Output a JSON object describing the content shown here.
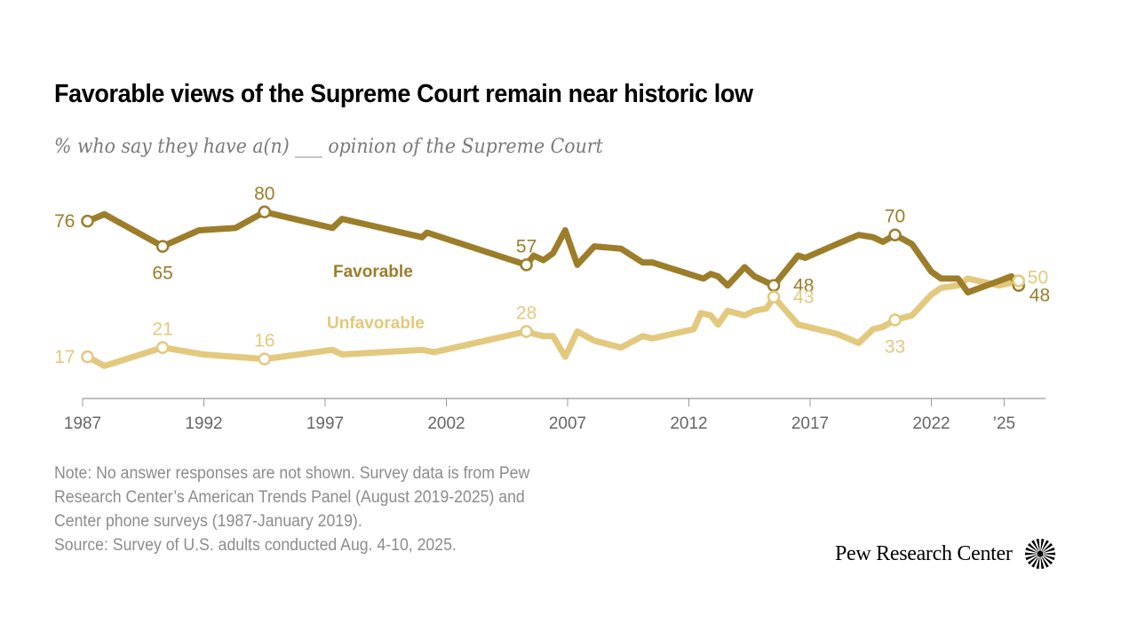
{
  "title": "Favorable views of the Supreme Court remain near historic low",
  "subtitle": "% who say they have a(n) ___ opinion of the Supreme Court",
  "note_lines": [
    "Note: No answer responses are not shown. Survey data is from Pew",
    "Research Center’s American Trends Panel (August 2019-2025) and",
    "Center phone surveys (1987-January 2019).",
    "Source: Survey of U.S. adults conducted Aug. 4-10, 2025."
  ],
  "logo_text": "Pew Research Center",
  "logo_icon": "pew-sunburst-icon",
  "colors": {
    "favorable": "#9c7d2a",
    "unfavorable": "#e3c97e",
    "axis": "#999999",
    "tick_label": "#666666"
  },
  "chart_data": {
    "type": "line",
    "title": "Favorable views of the Supreme Court remain near historic low",
    "xlabel": "",
    "ylabel": "%",
    "xlim": [
      1987,
      2026.9
    ],
    "ylim": [
      0,
      90
    ],
    "grid": false,
    "x_ticks": [
      1987,
      1992,
      1997,
      2002,
      2007,
      2012,
      2017,
      2022,
      2025
    ],
    "x_tick_labels": [
      "1987",
      "1992",
      "1997",
      "2002",
      "2007",
      "2012",
      "2017",
      "2022",
      "’25"
    ],
    "series": [
      {
        "name": "Favorable",
        "color": "#9c7d2a",
        "legend_label_position": "inline-below-line",
        "points": [
          [
            1987.2,
            76
          ],
          [
            1987.9,
            79
          ],
          [
            1990.3,
            65
          ],
          [
            1991.8,
            72
          ],
          [
            1993.3,
            73
          ],
          [
            1994.5,
            80
          ],
          [
            1997.3,
            73
          ],
          [
            1997.7,
            77
          ],
          [
            2001.0,
            69
          ],
          [
            2001.2,
            71
          ],
          [
            2005.3,
            57
          ],
          [
            2005.6,
            61
          ],
          [
            2006.0,
            59
          ],
          [
            2006.4,
            62
          ],
          [
            2006.9,
            72
          ],
          [
            2007.4,
            57
          ],
          [
            2008.1,
            65
          ],
          [
            2009.2,
            64
          ],
          [
            2010.1,
            58
          ],
          [
            2010.5,
            58
          ],
          [
            2012.6,
            51
          ],
          [
            2012.9,
            53
          ],
          [
            2013.2,
            52
          ],
          [
            2013.6,
            48
          ],
          [
            2014.3,
            56
          ],
          [
            2014.7,
            52
          ],
          [
            2015.5,
            48
          ],
          [
            2016.5,
            61
          ],
          [
            2016.8,
            60
          ],
          [
            2018.1,
            66
          ],
          [
            2019.0,
            70
          ],
          [
            2019.6,
            69
          ],
          [
            2020.0,
            67
          ],
          [
            2020.5,
            70
          ],
          [
            2021.2,
            66
          ],
          [
            2022.0,
            54
          ],
          [
            2022.4,
            51
          ],
          [
            2023.1,
            51
          ],
          [
            2023.5,
            45
          ],
          [
            2024.8,
            50
          ],
          [
            2025.3,
            52
          ],
          [
            2025.6,
            48
          ]
        ],
        "labeled_points": [
          {
            "x": 1987.2,
            "y": 76,
            "label": "76",
            "pos": "left"
          },
          {
            "x": 1990.3,
            "y": 65,
            "label": "65",
            "pos": "below"
          },
          {
            "x": 1994.5,
            "y": 80,
            "label": "80",
            "pos": "above"
          },
          {
            "x": 2005.3,
            "y": 57,
            "label": "57",
            "pos": "above"
          },
          {
            "x": 2015.5,
            "y": 48,
            "label": "48",
            "pos": "right"
          },
          {
            "x": 2020.5,
            "y": 70,
            "label": "70",
            "pos": "above"
          },
          {
            "x": 2025.6,
            "y": 48,
            "label": "48",
            "pos": "right-below"
          }
        ]
      },
      {
        "name": "Unfavorable",
        "color": "#e3c97e",
        "legend_label_position": "inline-above-line",
        "points": [
          [
            1987.2,
            17
          ],
          [
            1987.9,
            13
          ],
          [
            1990.3,
            21
          ],
          [
            1992.0,
            18
          ],
          [
            1994.5,
            16
          ],
          [
            1997.3,
            20
          ],
          [
            1997.7,
            18
          ],
          [
            2001.0,
            20
          ],
          [
            2001.5,
            19
          ],
          [
            2005.3,
            28
          ],
          [
            2005.6,
            27
          ],
          [
            2006.0,
            26
          ],
          [
            2006.4,
            26
          ],
          [
            2006.9,
            17
          ],
          [
            2007.4,
            28
          ],
          [
            2008.1,
            24
          ],
          [
            2009.2,
            21
          ],
          [
            2010.1,
            26
          ],
          [
            2010.5,
            25
          ],
          [
            2012.2,
            29
          ],
          [
            2012.5,
            36
          ],
          [
            2012.9,
            35
          ],
          [
            2013.2,
            31
          ],
          [
            2013.6,
            37
          ],
          [
            2014.3,
            35
          ],
          [
            2014.7,
            37
          ],
          [
            2015.2,
            38
          ],
          [
            2015.5,
            43
          ],
          [
            2016.5,
            31
          ],
          [
            2018.1,
            27
          ],
          [
            2019.0,
            23
          ],
          [
            2019.6,
            29
          ],
          [
            2020.0,
            30
          ],
          [
            2020.5,
            33
          ],
          [
            2021.2,
            35
          ],
          [
            2022.0,
            44
          ],
          [
            2022.4,
            47
          ],
          [
            2023.1,
            48
          ],
          [
            2023.5,
            51
          ],
          [
            2024.8,
            48
          ],
          [
            2025.6,
            50
          ]
        ],
        "labeled_points": [
          {
            "x": 1987.2,
            "y": 17,
            "label": "17",
            "pos": "left"
          },
          {
            "x": 1990.3,
            "y": 21,
            "label": "21",
            "pos": "above"
          },
          {
            "x": 1994.5,
            "y": 16,
            "label": "16",
            "pos": "above"
          },
          {
            "x": 2005.3,
            "y": 28,
            "label": "28",
            "pos": "above"
          },
          {
            "x": 2015.5,
            "y": 43,
            "label": "43",
            "pos": "right"
          },
          {
            "x": 2020.5,
            "y": 33,
            "label": "33",
            "pos": "below"
          },
          {
            "x": 2025.6,
            "y": 50,
            "label": "50",
            "pos": "right-above"
          }
        ]
      }
    ],
    "annotations": [
      {
        "text": "Favorable",
        "series": "Favorable"
      },
      {
        "text": "Unfavorable",
        "series": "Unfavorable"
      }
    ]
  }
}
